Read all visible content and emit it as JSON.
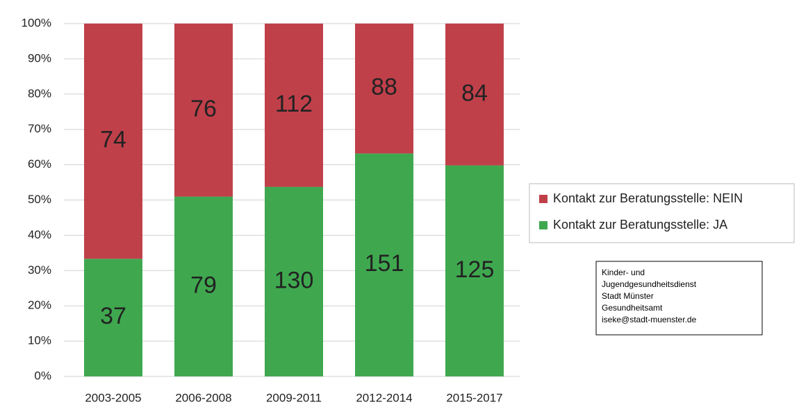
{
  "chart_data": {
    "type": "bar",
    "stacking": "percent",
    "categories": [
      "2003-2005",
      "2006-2008",
      "2009-2011",
      "2012-2014",
      "2015-2017"
    ],
    "series": [
      {
        "name": "Kontakt zur Beratungsstelle: JA",
        "color": "#3fa84f",
        "values": [
          37,
          79,
          130,
          151,
          125
        ]
      },
      {
        "name": "Kontakt zur Beratungsstelle: NEIN",
        "color": "#c0404a",
        "values": [
          74,
          76,
          112,
          88,
          84
        ]
      }
    ],
    "ylim": [
      0,
      100
    ],
    "yticks": [
      {
        "value": 0,
        "label": "0%"
      },
      {
        "value": 10,
        "label": "10%"
      },
      {
        "value": 20,
        "label": "20%"
      },
      {
        "value": 30,
        "label": "30%"
      },
      {
        "value": 40,
        "label": "40%"
      },
      {
        "value": 50,
        "label": "50%"
      },
      {
        "value": 60,
        "label": "60%"
      },
      {
        "value": 70,
        "label": "70%"
      },
      {
        "value": 80,
        "label": "80%"
      },
      {
        "value": 90,
        "label": "90%"
      },
      {
        "value": 100,
        "label": "100%"
      }
    ],
    "grid": true,
    "legend": "right",
    "annotation": [
      "Kinder- und",
      "Jugendgesundheitsdienst",
      "Stadt Münster",
      "Gesundheitsamt",
      "iseke@stadt-muenster.de"
    ]
  }
}
